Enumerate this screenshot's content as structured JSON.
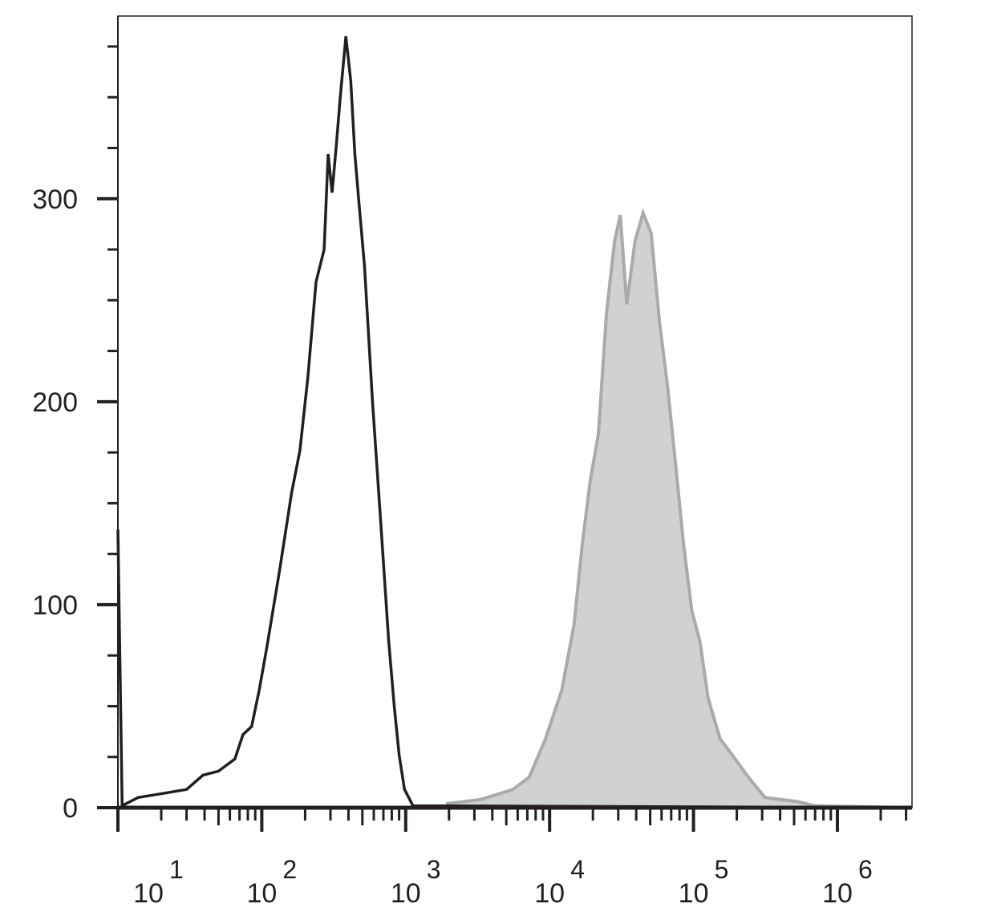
{
  "chart_data": {
    "type": "histogram-overlay",
    "xscale": "log",
    "xlim": [
      10,
      3300000
    ],
    "ylim": [
      0,
      390
    ],
    "xticks": [
      {
        "value": 10,
        "label": "10",
        "exponent": "1"
      },
      {
        "value": 100,
        "label": "10",
        "exponent": "2"
      },
      {
        "value": 1000,
        "label": "10",
        "exponent": "3"
      },
      {
        "value": 10000,
        "label": "10",
        "exponent": "4"
      },
      {
        "value": 100000,
        "label": "10",
        "exponent": "5"
      },
      {
        "value": 1000000,
        "label": "10",
        "exponent": "6"
      }
    ],
    "x_minor_ticks": true,
    "yticks": [
      0,
      100,
      200,
      300
    ],
    "y_minor_ticks": [
      25,
      50,
      75,
      125,
      150,
      175,
      225,
      250,
      275,
      325,
      350,
      375
    ],
    "series": [
      {
        "color": "#aaaaab",
        "fill": "#d1d1d2",
        "filled": true,
        "x": [
          1950,
          3300,
          5560,
          7220,
          9370,
          12150,
          14770,
          16820,
          19140,
          21840,
          24870,
          28300,
          31000,
          34400,
          39200,
          44600,
          50800,
          57900,
          65900,
          75100,
          85500,
          97400,
          110900,
          126300,
          153000,
          186000,
          241000,
          314000,
          529000,
          685000,
          3300000
        ],
        "values": [
          2,
          4,
          9,
          15,
          34,
          58,
          90,
          129,
          161,
          184,
          244,
          279,
          292,
          248,
          279,
          293,
          283,
          240,
          208,
          169,
          129,
          97,
          82,
          54,
          34,
          26,
          15,
          5,
          3,
          1,
          0
        ]
      },
      {
        "color": "#231f20",
        "filled": false,
        "x": [
          10,
          10.7,
          13.8,
          20.4,
          30,
          39,
          50,
          65,
          74,
          85,
          96,
          109,
          133,
          161,
          184,
          209,
          238,
          271,
          289,
          308,
          329,
          351,
          384,
          415,
          443,
          472,
          517,
          588,
          670,
          762,
          832,
          900,
          981,
          1123,
          3300000
        ],
        "values": [
          137,
          1,
          5,
          7,
          9,
          16,
          18,
          24,
          36,
          40,
          58,
          80,
          117,
          155,
          176,
          212,
          259,
          275,
          322,
          303,
          326,
          350,
          380,
          358,
          322,
          299,
          267,
          200,
          141,
          82,
          50,
          26,
          9,
          1,
          0
        ]
      }
    ]
  }
}
